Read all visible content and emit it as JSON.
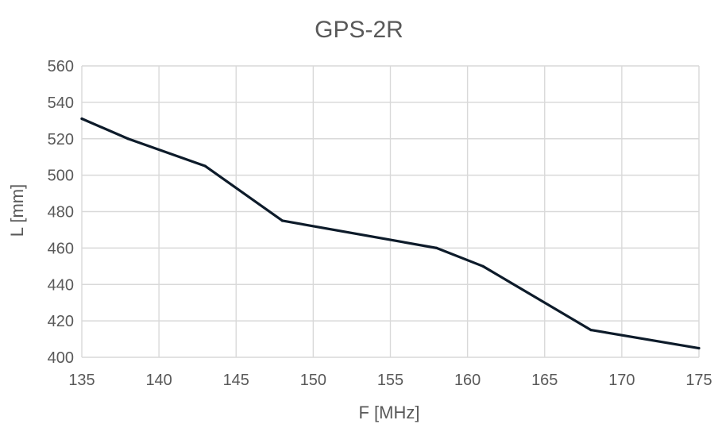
{
  "chart_data": {
    "type": "line",
    "title": "GPS-2R",
    "xlabel": "F [MHz]",
    "ylabel": "L [mm]",
    "x": [
      135,
      138,
      143,
      148,
      158,
      161,
      168,
      175
    ],
    "series": [
      {
        "values": [
          531,
          520,
          505,
          475,
          460,
          450,
          415,
          405
        ]
      }
    ],
    "xlim": [
      135,
      175
    ],
    "ylim": [
      400,
      560
    ],
    "xticks": [
      "135",
      "140",
      "145",
      "150",
      "155",
      "160",
      "165",
      "170",
      "175"
    ],
    "yticks": [
      "400",
      "420",
      "440",
      "460",
      "480",
      "500",
      "520",
      "540",
      "560"
    ],
    "grid": true,
    "legend": "none",
    "line_color": "#0d1b2a",
    "grid_color": "#d9d9d9",
    "text_color": "#595959"
  }
}
